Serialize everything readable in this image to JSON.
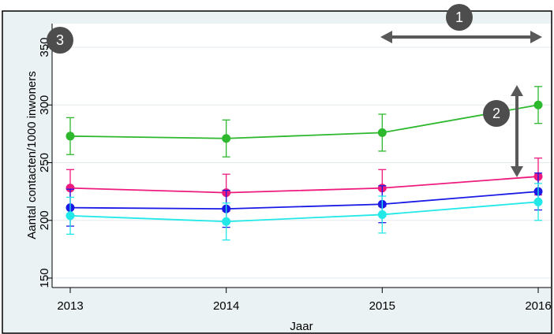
{
  "chart_data": {
    "type": "line",
    "title": "",
    "xlabel": "Jaar",
    "ylabel": "Aantal contacten/1000 inwoners",
    "x": [
      2013,
      2014,
      2015,
      2016
    ],
    "x_ticks": [
      "2013",
      "2014",
      "2015",
      "2016"
    ],
    "xlim": [
      2013,
      2016
    ],
    "y_ticks": [
      "150",
      "200",
      "250",
      "300",
      "350"
    ],
    "ylim": [
      150,
      350
    ],
    "grid": "horizontal",
    "series": [
      {
        "color": "#2eb82e",
        "values": [
          273,
          271,
          276,
          300
        ],
        "lower": [
          257,
          255,
          260,
          284
        ],
        "upper": [
          289,
          287,
          292,
          316
        ]
      },
      {
        "color": "#ee1a7e",
        "values": [
          228,
          224,
          228,
          238
        ],
        "lower": [
          212,
          208,
          212,
          222
        ],
        "upper": [
          244,
          240,
          244,
          254
        ]
      },
      {
        "color": "#1a1ae6",
        "values": [
          211,
          210,
          214,
          225
        ],
        "lower": [
          195,
          194,
          198,
          209
        ],
        "upper": [
          227,
          226,
          230,
          241
        ]
      },
      {
        "color": "#22e8e8",
        "values": [
          204,
          199,
          205,
          216
        ],
        "lower": [
          188,
          183,
          189,
          200
        ],
        "upper": [
          220,
          215,
          221,
          232
        ]
      }
    ]
  },
  "annotations": {
    "badge_1": "1",
    "badge_2": "2",
    "badge_3": "3",
    "arrow_color": "#595959",
    "badge_color": "#4d4d4d"
  }
}
